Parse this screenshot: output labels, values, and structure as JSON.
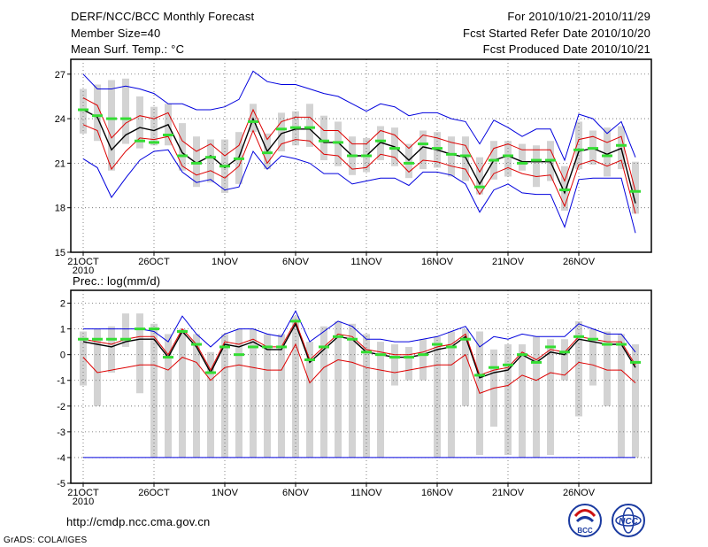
{
  "header": {
    "title": "DERF/NCC/BCC Monthly Forecast",
    "member_size": "Member Size=40",
    "variable": "Mean Surf. Temp.: °C",
    "period": "For 2010/10/21-2010/11/29",
    "started": "Fcst Started Refer Date 2010/10/20",
    "produced": "Fcst Produced Date 2010/10/21"
  },
  "footer": {
    "url": "http://cmdp.ncc.cma.gov.cn",
    "credit": "GrADS: COLA/IGES",
    "logo_bcc": "BCC",
    "logo_ncc": "NCC"
  },
  "colors": {
    "ensemble_mean": "#000000",
    "spread": "#dd0000",
    "extreme": "#0000dd",
    "observed": "#33dd33",
    "range_bar": "#d3d3d3"
  },
  "chart_data": [
    {
      "type": "line",
      "title": "Mean Surf. Temp.: °C",
      "x_tick_labels": [
        "21OCT",
        "26OCT",
        "1NOV",
        "6NOV",
        "11NOV",
        "16NOV",
        "21NOV",
        "26NOV"
      ],
      "x_tick_days": [
        1,
        6,
        11,
        16,
        21,
        26,
        31,
        36
      ],
      "year_label": "2010",
      "ylim": [
        15,
        28
      ],
      "y_ticks": [
        15,
        18,
        21,
        24,
        27
      ],
      "days": [
        1,
        2,
        3,
        4,
        5,
        6,
        7,
        8,
        9,
        10,
        11,
        12,
        13,
        14,
        15,
        16,
        17,
        18,
        19,
        20,
        21,
        22,
        23,
        24,
        25,
        26,
        27,
        28,
        29,
        30,
        31,
        32,
        33,
        34,
        35,
        36,
        37,
        38,
        39,
        40
      ],
      "series": [
        {
          "name": "ensemble_mean",
          "values": [
            24.6,
            24.1,
            21.9,
            22.9,
            23.4,
            23.2,
            23.6,
            21.7,
            21.0,
            21.5,
            20.7,
            21.4,
            24.0,
            21.8,
            23.0,
            23.3,
            23.3,
            22.4,
            22.4,
            21.5,
            21.5,
            22.4,
            22.1,
            21.2,
            22.1,
            21.9,
            21.6,
            21.4,
            19.6,
            21.2,
            21.5,
            21.1,
            21.1,
            21.1,
            19.0,
            21.8,
            22.0,
            21.6,
            22.0,
            18.3
          ]
        },
        {
          "name": "spread_upper",
          "values": [
            25.4,
            24.9,
            22.7,
            23.7,
            24.2,
            24.0,
            24.4,
            22.5,
            21.8,
            22.3,
            21.5,
            22.2,
            24.6,
            22.6,
            23.8,
            24.1,
            24.1,
            23.2,
            23.2,
            22.3,
            22.3,
            23.2,
            22.9,
            22.0,
            22.9,
            22.7,
            22.4,
            22.2,
            20.4,
            22.0,
            22.3,
            21.9,
            21.9,
            21.9,
            19.8,
            22.6,
            22.8,
            22.4,
            22.8,
            19.1
          ]
        },
        {
          "name": "spread_lower",
          "values": [
            23.6,
            23.2,
            20.6,
            21.8,
            22.7,
            22.6,
            22.8,
            20.8,
            20.2,
            20.5,
            20.0,
            20.8,
            23.2,
            21.0,
            22.3,
            22.6,
            22.5,
            21.6,
            21.5,
            20.6,
            20.7,
            21.6,
            21.4,
            20.4,
            21.2,
            21.1,
            20.8,
            20.6,
            18.9,
            20.3,
            20.7,
            20.3,
            20.1,
            20.2,
            18.1,
            20.9,
            21.2,
            20.8,
            21.2,
            17.6
          ]
        },
        {
          "name": "max",
          "values": [
            27.0,
            26.0,
            26.0,
            26.2,
            26.0,
            25.7,
            25.0,
            25.0,
            24.6,
            24.6,
            24.8,
            25.3,
            27.2,
            26.5,
            26.3,
            26.3,
            26.0,
            25.7,
            25.5,
            25.0,
            24.5,
            25.0,
            24.8,
            24.2,
            24.4,
            24.4,
            24.0,
            23.8,
            22.3,
            23.9,
            23.4,
            22.8,
            23.3,
            23.3,
            21.2,
            24.3,
            24.0,
            23.0,
            23.8,
            21.4
          ]
        },
        {
          "name": "min",
          "values": [
            21.3,
            20.7,
            18.7,
            20.0,
            21.2,
            21.8,
            21.9,
            20.4,
            19.7,
            19.9,
            19.2,
            19.4,
            21.8,
            20.6,
            21.5,
            21.3,
            21.0,
            20.3,
            20.3,
            19.6,
            19.8,
            20.0,
            20.0,
            19.5,
            20.4,
            20.4,
            20.2,
            19.6,
            17.7,
            19.2,
            19.6,
            19.0,
            18.9,
            18.9,
            16.7,
            19.9,
            20.0,
            20.0,
            20.0,
            16.3
          ]
        },
        {
          "name": "observed",
          "values": [
            24.6,
            24.2,
            24.0,
            24.0,
            22.5,
            22.4,
            22.9,
            21.5,
            21.0,
            21.4,
            20.8,
            21.3,
            23.8,
            21.7,
            23.3,
            23.4,
            23.4,
            22.5,
            22.4,
            21.5,
            21.5,
            22.5,
            22.0,
            21.0,
            22.3,
            22.0,
            21.6,
            21.5,
            19.4,
            21.2,
            21.5,
            21.0,
            21.2,
            21.2,
            19.2,
            21.9,
            22.0,
            21.5,
            22.2,
            19.1
          ]
        }
      ],
      "range_bars": {
        "high": [
          26.0,
          26.3,
          26.6,
          26.7,
          25.5,
          24.8,
          25.0,
          23.7,
          22.8,
          22.6,
          22.6,
          23.1,
          25.0,
          23.0,
          24.4,
          24.5,
          25.0,
          24.2,
          23.8,
          22.8,
          22.7,
          23.5,
          23.4,
          22.3,
          23.2,
          23.1,
          22.8,
          22.8,
          21.4,
          22.5,
          22.5,
          22.3,
          22.2,
          22.5,
          20.8,
          23.8,
          23.2,
          23.4,
          23.5,
          21.1
        ],
        "low": [
          23.0,
          22.5,
          20.5,
          22.3,
          22.0,
          22.2,
          22.2,
          20.5,
          19.4,
          19.7,
          19.0,
          19.6,
          23.1,
          20.6,
          21.8,
          22.2,
          22.1,
          21.2,
          20.8,
          20.2,
          20.4,
          21.2,
          20.8,
          20.0,
          20.6,
          20.7,
          20.1,
          19.8,
          18.9,
          19.9,
          20.1,
          20.5,
          19.4,
          19.8,
          17.8,
          20.6,
          20.9,
          20.1,
          20.6,
          17.6
        ]
      }
    },
    {
      "type": "line",
      "title": "Prec.: log(mm/d)",
      "x_tick_labels": [
        "21OCT",
        "26OCT",
        "1NOV",
        "6NOV",
        "11NOV",
        "16NOV",
        "21NOV",
        "26NOV"
      ],
      "x_tick_days": [
        1,
        6,
        11,
        16,
        21,
        26,
        31,
        36
      ],
      "year_label": "2010",
      "ylim": [
        -5,
        2.5
      ],
      "y_ticks": [
        -5,
        -4,
        -3,
        -2,
        -1,
        0,
        1,
        2
      ],
      "days": [
        1,
        2,
        3,
        4,
        5,
        6,
        7,
        8,
        9,
        10,
        11,
        12,
        13,
        14,
        15,
        16,
        17,
        18,
        19,
        20,
        21,
        22,
        23,
        24,
        25,
        26,
        27,
        28,
        29,
        30,
        31,
        32,
        33,
        34,
        35,
        36,
        37,
        38,
        39,
        40
      ],
      "series": [
        {
          "name": "ensemble_mean",
          "values": [
            0.5,
            0.4,
            0.3,
            0.5,
            0.6,
            0.6,
            -0.1,
            0.9,
            0.3,
            -0.7,
            0.4,
            0.3,
            0.5,
            0.2,
            0.2,
            1.2,
            -0.3,
            0.2,
            0.7,
            0.6,
            0.1,
            0.0,
            -0.1,
            -0.1,
            0.0,
            0.2,
            0.3,
            0.7,
            -0.9,
            -0.7,
            -0.6,
            0.0,
            -0.3,
            0.1,
            0.0,
            0.6,
            0.5,
            0.4,
            0.4,
            -0.5
          ]
        },
        {
          "name": "spread_upper",
          "values": [
            0.6,
            0.5,
            0.4,
            0.6,
            0.7,
            0.7,
            0.0,
            1.0,
            0.4,
            -0.6,
            0.5,
            0.4,
            0.6,
            0.3,
            0.3,
            1.3,
            -0.2,
            0.3,
            0.8,
            0.7,
            0.2,
            0.1,
            0.0,
            0.0,
            0.1,
            0.3,
            0.4,
            0.8,
            -0.8,
            -0.6,
            -0.5,
            0.1,
            -0.2,
            0.2,
            0.1,
            0.7,
            0.6,
            0.5,
            0.5,
            -0.4
          ]
        },
        {
          "name": "spread_lower",
          "values": [
            -0.1,
            -0.7,
            -0.6,
            -0.5,
            -0.4,
            -0.4,
            -0.6,
            -0.1,
            -0.3,
            -1.0,
            -0.5,
            -0.4,
            -0.5,
            -0.6,
            -0.6,
            0.4,
            -1.1,
            -0.5,
            -0.2,
            -0.3,
            -0.5,
            -0.6,
            -0.7,
            -0.6,
            -0.5,
            -0.4,
            -0.4,
            0.0,
            -1.5,
            -1.3,
            -1.2,
            -0.8,
            -1.0,
            -0.7,
            -0.8,
            -0.3,
            -0.4,
            -0.6,
            -0.6,
            -1.1
          ]
        },
        {
          "name": "max",
          "values": [
            1.0,
            1.0,
            1.0,
            1.0,
            1.0,
            0.9,
            0.5,
            1.5,
            0.8,
            0.3,
            0.8,
            1.0,
            1.0,
            0.8,
            0.7,
            1.7,
            0.5,
            0.9,
            1.3,
            1.1,
            0.6,
            0.6,
            0.5,
            0.5,
            0.6,
            0.7,
            0.9,
            1.1,
            0.3,
            0.7,
            0.6,
            0.8,
            0.7,
            0.7,
            0.7,
            1.2,
            1.0,
            0.8,
            0.8,
            0.1
          ]
        },
        {
          "name": "min",
          "values": [
            -4,
            -4,
            -4,
            -4,
            -4,
            -4,
            -4,
            -4,
            -4,
            -4,
            -4,
            -4,
            -4,
            -4,
            -4,
            -4,
            -4,
            -4,
            -4,
            -4,
            -4,
            -4,
            -4,
            -4,
            -4,
            -4,
            -4,
            -4,
            -4,
            -4,
            -4,
            -4,
            -4,
            -4,
            -4,
            -4,
            -4,
            -4,
            -4,
            -4
          ]
        },
        {
          "name": "observed",
          "values": [
            0.6,
            0.6,
            0.6,
            0.6,
            1.0,
            1.0,
            -0.1,
            0.9,
            0.4,
            -0.7,
            0.3,
            0.0,
            0.3,
            0.3,
            0.3,
            1.3,
            -0.2,
            0.3,
            0.7,
            0.6,
            0.1,
            0.0,
            -0.1,
            -0.1,
            0.0,
            0.4,
            0.3,
            0.6,
            -0.8,
            -0.5,
            -0.4,
            0.0,
            -0.3,
            0.3,
            0.1,
            0.7,
            0.6,
            0.4,
            0.4,
            -0.3
          ]
        }
      ],
      "range_bars": {
        "high": [
          0.9,
          1.0,
          1.1,
          1.6,
          1.6,
          1.2,
          0.8,
          1.0,
          0.8,
          0.1,
          0.8,
          1.0,
          1.0,
          0.8,
          0.8,
          1.5,
          0.5,
          1.1,
          1.3,
          1.2,
          0.8,
          0.5,
          0.4,
          0.3,
          0.6,
          0.7,
          0.9,
          1.0,
          0.9,
          0.2,
          0.4,
          0.4,
          0.7,
          0.6,
          0.6,
          1.3,
          1.0,
          0.9,
          0.8,
          0.4
        ],
        "low": [
          -1.2,
          -2.0,
          -0.7,
          0.3,
          -1.5,
          -4.0,
          -4.0,
          -4.0,
          -4.0,
          -4.0,
          -4.0,
          -4.0,
          -4.0,
          -4.0,
          -4.0,
          -4.0,
          -4.0,
          -4.0,
          -4.0,
          -4.0,
          -4.0,
          -4.0,
          -1.2,
          -1.0,
          -1.0,
          -4.0,
          -4.0,
          -2.0,
          -3.9,
          -2.8,
          -3.9,
          -4.0,
          -4.0,
          -3.9,
          -1.0,
          -2.4,
          -1.2,
          -2.0,
          -4.0,
          -4.0
        ]
      }
    }
  ]
}
